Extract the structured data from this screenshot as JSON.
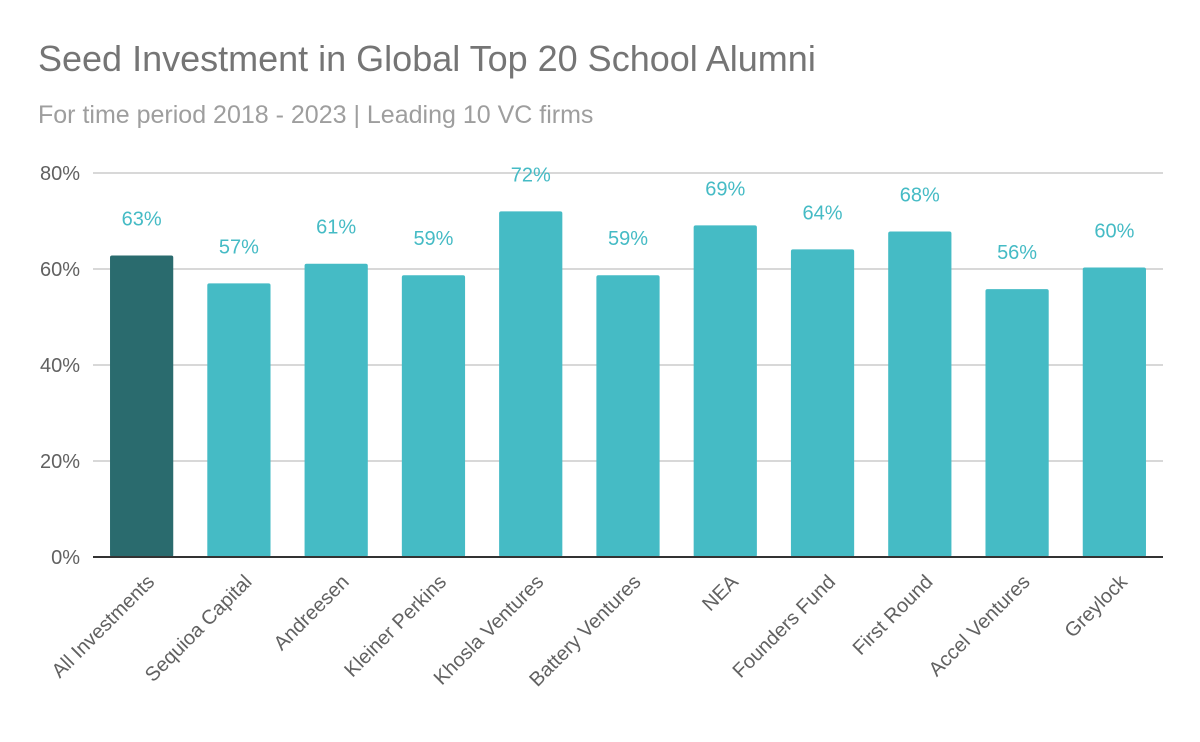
{
  "colors": {
    "highlight": "#2a6b6e",
    "bar": "#45bbc5",
    "label": "#45bbc5",
    "grid": "#cccccc",
    "axis": "#333333"
  },
  "chart_data": {
    "type": "bar",
    "title": "Seed Investment in Global Top 20 School Alumni",
    "subtitle": "For time period 2018 - 2023 | Leading 10 VC firms",
    "xlabel": "",
    "ylabel": "",
    "ylim": [
      0,
      80
    ],
    "yticks": [
      0,
      20,
      40,
      60,
      80
    ],
    "ytick_labels": [
      "0%",
      "20%",
      "40%",
      "60%",
      "80%"
    ],
    "grid": true,
    "legend": "none",
    "categories": [
      "All Investments",
      "Sequioa Capital",
      "Andreesen",
      "Kleiner Perkins",
      "Khosla Ventures",
      "Battery Ventures",
      "NEA",
      "Founders Fund",
      "First Round",
      "Accel Ventures",
      "Greylock"
    ],
    "values": [
      62.8,
      57.0,
      61.1,
      58.7,
      72.0,
      58.7,
      69.1,
      64.1,
      67.8,
      55.8,
      60.3
    ],
    "value_labels": [
      "63%",
      "57%",
      "61%",
      "59%",
      "72%",
      "59%",
      "69%",
      "64%",
      "68%",
      "56%",
      "60%"
    ],
    "highlight_index": 0
  }
}
